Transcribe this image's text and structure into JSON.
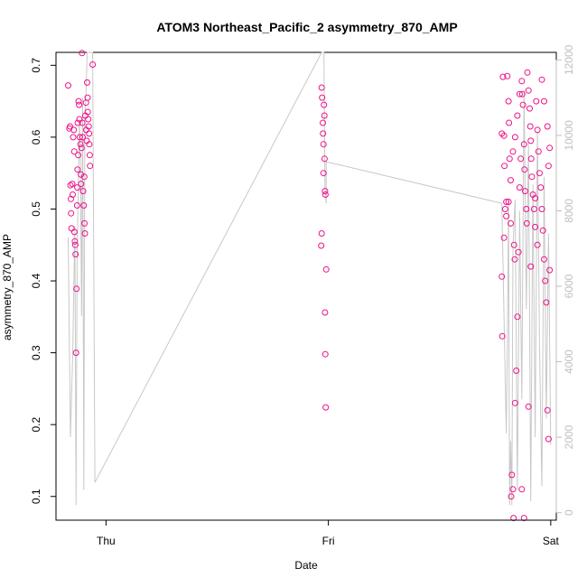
{
  "chart_data": {
    "type": "scatter",
    "title": "ATOM3 Northeast_Pacific_2 asymmetry_870_AMP",
    "xlabel": "Date",
    "ylabel": "asymmetry_870_AMP",
    "x_ticks": [
      "Thu",
      "Fri",
      "Sat"
    ],
    "y_ticks": [
      "0.1",
      "0.2",
      "0.3",
      "0.4",
      "0.5",
      "0.6",
      "0.7"
    ],
    "y2_ticks": [
      "0",
      "2000",
      "4000",
      "6000",
      "8000",
      "10000",
      "12000"
    ],
    "x_range": [
      -0.225,
      2.025
    ],
    "ylim": [
      0.067,
      0.718
    ],
    "y2lim": [
      -200,
      12200
    ],
    "colors": {
      "points": "#ee1289",
      "line": "#c8c8c8",
      "right_axis": "#bfbfbf",
      "axis": "#000000"
    },
    "series": [
      {
        "kind": "points",
        "points": [
          [
            -0.17,
            0.672
          ],
          [
            -0.165,
            0.612
          ],
          [
            -0.162,
            0.615
          ],
          [
            -0.16,
            0.533
          ],
          [
            -0.158,
            0.514
          ],
          [
            -0.157,
            0.494
          ],
          [
            -0.155,
            0.473
          ],
          [
            -0.152,
            0.535
          ],
          [
            -0.15,
            0.52
          ],
          [
            -0.148,
            0.6
          ],
          [
            -0.145,
            0.61
          ],
          [
            -0.143,
            0.58
          ],
          [
            -0.142,
            0.468
          ],
          [
            -0.14,
            0.455
          ],
          [
            -0.138,
            0.45
          ],
          [
            -0.137,
            0.437
          ],
          [
            -0.135,
            0.3
          ],
          [
            -0.133,
            0.389
          ],
          [
            -0.13,
            0.505
          ],
          [
            -0.129,
            0.53
          ],
          [
            -0.128,
            0.555
          ],
          [
            -0.127,
            0.62
          ],
          [
            -0.125,
            0.575
          ],
          [
            -0.123,
            0.65
          ],
          [
            -0.121,
            0.645
          ],
          [
            -0.12,
            0.625
          ],
          [
            -0.118,
            0.6
          ],
          [
            -0.115,
            0.59
          ],
          [
            -0.113,
            0.548
          ],
          [
            -0.112,
            0.535
          ],
          [
            -0.11,
            0.585
          ],
          [
            -0.108,
            0.717
          ],
          [
            -0.107,
            0.62
          ],
          [
            -0.105,
            0.6
          ],
          [
            -0.103,
            0.525
          ],
          [
            -0.1,
            0.505
          ],
          [
            -0.098,
            0.545
          ],
          [
            -0.097,
            0.48
          ],
          [
            -0.095,
            0.466
          ],
          [
            -0.093,
            0.63
          ],
          [
            -0.09,
            0.648
          ],
          [
            -0.089,
            0.61
          ],
          [
            -0.087,
            0.595
          ],
          [
            -0.085,
            0.676
          ],
          [
            -0.083,
            0.655
          ],
          [
            -0.082,
            0.635
          ],
          [
            -0.08,
            0.625
          ],
          [
            -0.078,
            0.615
          ],
          [
            -0.076,
            0.605
          ],
          [
            -0.075,
            0.59
          ],
          [
            -0.073,
            0.575
          ],
          [
            -0.072,
            0.56
          ],
          [
            -0.06,
            0.701
          ],
          [
            0.97,
            0.669
          ],
          [
            0.972,
            0.655
          ],
          [
            0.975,
            0.62
          ],
          [
            0.976,
            0.605
          ],
          [
            0.978,
            0.59
          ],
          [
            0.98,
            0.645
          ],
          [
            0.982,
            0.63
          ],
          [
            0.983,
            0.57
          ],
          [
            0.985,
            0.525
          ],
          [
            0.987,
            0.52
          ],
          [
            0.97,
            0.466
          ],
          [
            0.968,
            0.449
          ],
          [
            0.99,
            0.416
          ],
          [
            0.985,
            0.356
          ],
          [
            0.986,
            0.298
          ],
          [
            0.988,
            0.224
          ],
          [
            0.978,
            0.55
          ],
          [
            1.78,
            0.406
          ],
          [
            1.782,
            0.323
          ],
          [
            1.785,
            0.684
          ],
          [
            1.79,
            0.602
          ],
          [
            1.792,
            0.56
          ],
          [
            1.795,
            0.5
          ],
          [
            1.8,
            0.51
          ],
          [
            1.805,
            0.685
          ],
          [
            1.81,
            0.65
          ],
          [
            1.812,
            0.62
          ],
          [
            1.815,
            0.57
          ],
          [
            1.82,
            0.48
          ],
          [
            1.822,
            0.1
          ],
          [
            1.825,
            0.13
          ],
          [
            1.83,
            0.11
          ],
          [
            1.833,
            0.07
          ],
          [
            1.835,
            0.45
          ],
          [
            1.838,
            0.43
          ],
          [
            1.84,
            0.23
          ],
          [
            1.845,
            0.275
          ],
          [
            1.85,
            0.35
          ],
          [
            1.855,
            0.44
          ],
          [
            1.86,
            0.53
          ],
          [
            1.865,
            0.57
          ],
          [
            1.87,
            0.678
          ],
          [
            1.872,
            0.66
          ],
          [
            1.875,
            0.645
          ],
          [
            1.88,
            0.59
          ],
          [
            1.882,
            0.555
          ],
          [
            1.885,
            0.525
          ],
          [
            1.89,
            0.5
          ],
          [
            1.892,
            0.48
          ],
          [
            1.895,
            0.69
          ],
          [
            1.9,
            0.665
          ],
          [
            1.905,
            0.64
          ],
          [
            1.908,
            0.615
          ],
          [
            1.91,
            0.595
          ],
          [
            1.912,
            0.57
          ],
          [
            1.915,
            0.545
          ],
          [
            1.92,
            0.52
          ],
          [
            1.925,
            0.5
          ],
          [
            1.93,
            0.475
          ],
          [
            1.935,
            0.65
          ],
          [
            1.94,
            0.61
          ],
          [
            1.945,
            0.58
          ],
          [
            1.95,
            0.55
          ],
          [
            1.955,
            0.53
          ],
          [
            1.96,
            0.5
          ],
          [
            1.965,
            0.47
          ],
          [
            1.97,
            0.43
          ],
          [
            1.975,
            0.4
          ],
          [
            1.98,
            0.37
          ],
          [
            1.985,
            0.22
          ],
          [
            1.99,
            0.18
          ],
          [
            1.995,
            0.415
          ],
          [
            1.94,
            0.45
          ],
          [
            1.93,
            0.515
          ],
          [
            1.91,
            0.42
          ],
          [
            1.9,
            0.225
          ],
          [
            1.88,
            0.07
          ],
          [
            1.87,
            0.11
          ],
          [
            1.86,
            0.66
          ],
          [
            1.85,
            0.63
          ],
          [
            1.84,
            0.6
          ],
          [
            1.83,
            0.58
          ],
          [
            1.82,
            0.54
          ],
          [
            1.81,
            0.51
          ],
          [
            1.8,
            0.49
          ],
          [
            1.79,
            0.46
          ],
          [
            1.78,
            0.605
          ],
          [
            1.985,
            0.615
          ],
          [
            1.99,
            0.56
          ],
          [
            1.995,
            0.585
          ],
          [
            1.97,
            0.65
          ],
          [
            1.96,
            0.68
          ]
        ]
      },
      {
        "kind": "line",
        "axis": "y2",
        "points": [
          [
            -0.17,
            7300
          ],
          [
            -0.16,
            2000
          ],
          [
            -0.15,
            4200
          ],
          [
            -0.14,
            7600
          ],
          [
            -0.135,
            200
          ],
          [
            -0.13,
            6800
          ],
          [
            -0.12,
            10400
          ],
          [
            -0.115,
            9200
          ],
          [
            -0.11,
            5200
          ],
          [
            -0.105,
            11000
          ],
          [
            -0.1,
            600
          ],
          [
            -0.095,
            10600
          ],
          [
            -0.09,
            11100
          ],
          [
            -0.085,
            12200
          ],
          [
            -0.08,
            12200
          ],
          [
            -0.075,
            12200
          ],
          [
            -0.06,
            12200
          ],
          [
            -0.05,
            800
          ],
          [
            0.97,
            12200
          ],
          [
            0.98,
            12200
          ],
          [
            0.985,
            8500
          ],
          [
            0.99,
            8200
          ],
          [
            0.99,
            9300
          ],
          [
            1.78,
            8200
          ],
          [
            1.8,
            2100
          ],
          [
            1.805,
            4300
          ],
          [
            1.81,
            8300
          ],
          [
            1.815,
            200
          ],
          [
            1.82,
            1900
          ],
          [
            1.825,
            200
          ],
          [
            1.83,
            7000
          ],
          [
            1.84,
            8300
          ],
          [
            1.85,
            600
          ],
          [
            1.86,
            8000
          ],
          [
            1.87,
            3000
          ],
          [
            1.88,
            11200
          ],
          [
            1.89,
            5400
          ],
          [
            1.9,
            9800
          ],
          [
            1.91,
            300
          ],
          [
            1.92,
            8700
          ],
          [
            1.93,
            2000
          ],
          [
            1.94,
            10100
          ],
          [
            1.95,
            4300
          ],
          [
            1.96,
            700
          ],
          [
            1.97,
            8900
          ],
          [
            1.98,
            2500
          ],
          [
            1.99,
            7400
          ],
          [
            2.0,
            1800
          ]
        ]
      }
    ]
  }
}
